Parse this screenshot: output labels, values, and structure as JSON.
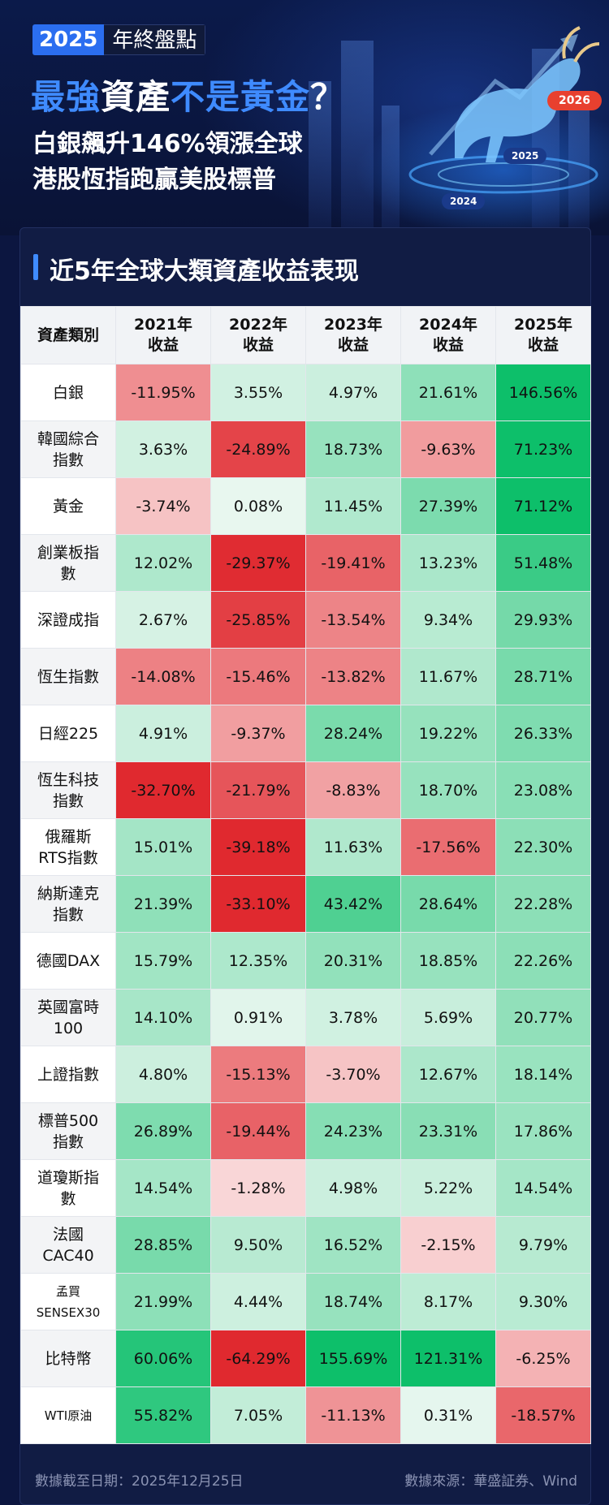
{
  "header": {
    "badge_year": "2025",
    "badge_label": "年終盤點",
    "title_blue_1": "最強",
    "title_white_1": "資產",
    "title_blue_2": "不是黃金",
    "title_white_2": "？",
    "subtitle_1": "白銀飆升146%領漲全球",
    "subtitle_2": "港股恆指跑贏美股標普",
    "year_tags": [
      "2024",
      "2025",
      "2026"
    ]
  },
  "section_title": "近5年全球大類資產收益表现",
  "footer": {
    "date_note": "數據截至日期：2025年12月25日",
    "source_note": "數據來源：華盛証券、Wind"
  },
  "colors": {
    "positive_scale": [
      "#e9f7f0",
      "#0dbf6a"
    ],
    "negative_scale": [
      "#fbe3e3",
      "#e0292f"
    ],
    "accent": "#3f8bff"
  },
  "chart_data": {
    "type": "table",
    "title": "近5年全球大類資產收益表现",
    "columns": [
      "資產類別",
      "2021年\n收益",
      "2022年\n收益",
      "2023年\n收益",
      "2024年\n收益",
      "2025年\n收益"
    ],
    "rows": [
      {
        "asset": "白銀",
        "values": [
          "-11.95%",
          "3.55%",
          "4.97%",
          "21.61%",
          "146.56%"
        ]
      },
      {
        "asset": "韓國綜合\n指數",
        "values": [
          "3.63%",
          "-24.89%",
          "18.73%",
          "-9.63%",
          "71.23%"
        ]
      },
      {
        "asset": "黃金",
        "values": [
          "-3.74%",
          "0.08%",
          "11.45%",
          "27.39%",
          "71.12%"
        ]
      },
      {
        "asset": "創業板指\n數",
        "values": [
          "12.02%",
          "-29.37%",
          "-19.41%",
          "13.23%",
          "51.48%"
        ]
      },
      {
        "asset": "深證成指",
        "values": [
          "2.67%",
          "-25.85%",
          "-13.54%",
          "9.34%",
          "29.93%"
        ]
      },
      {
        "asset": "恆生指數",
        "values": [
          "-14.08%",
          "-15.46%",
          "-13.82%",
          "11.67%",
          "28.71%"
        ]
      },
      {
        "asset": "日經225",
        "values": [
          "4.91%",
          "-9.37%",
          "28.24%",
          "19.22%",
          "26.33%"
        ]
      },
      {
        "asset": "恆生科技\n指數",
        "values": [
          "-32.70%",
          "-21.79%",
          "-8.83%",
          "18.70%",
          "23.08%"
        ]
      },
      {
        "asset": "俄羅斯\nRTS指數",
        "values": [
          "15.01%",
          "-39.18%",
          "11.63%",
          "-17.56%",
          "22.30%"
        ]
      },
      {
        "asset": "納斯達克\n指數",
        "values": [
          "21.39%",
          "-33.10%",
          "43.42%",
          "28.64%",
          "22.28%"
        ]
      },
      {
        "asset": "德國DAX",
        "values": [
          "15.79%",
          "12.35%",
          "20.31%",
          "18.85%",
          "22.26%"
        ]
      },
      {
        "asset": "英國富時\n100",
        "values": [
          "14.10%",
          "0.91%",
          "3.78%",
          "5.69%",
          "20.77%"
        ]
      },
      {
        "asset": "上證指數",
        "values": [
          "4.80%",
          "-15.13%",
          "-3.70%",
          "12.67%",
          "18.14%"
        ]
      },
      {
        "asset": "標普500\n指數",
        "values": [
          "26.89%",
          "-19.44%",
          "24.23%",
          "23.31%",
          "17.86%"
        ]
      },
      {
        "asset": "道瓊斯指\n數",
        "values": [
          "14.54%",
          "-1.28%",
          "4.98%",
          "5.22%",
          "14.54%"
        ]
      },
      {
        "asset": "法國\nCAC40",
        "values": [
          "28.85%",
          "9.50%",
          "16.52%",
          "-2.15%",
          "9.79%"
        ]
      },
      {
        "asset": "孟買\nSENSEX30",
        "values": [
          "21.99%",
          "4.44%",
          "18.74%",
          "8.17%",
          "9.30%"
        ]
      },
      {
        "asset": "比特幣",
        "values": [
          "60.06%",
          "-64.29%",
          "155.69%",
          "121.31%",
          "-6.25%"
        ]
      },
      {
        "asset": "WTI原油",
        "values": [
          "55.82%",
          "7.05%",
          "-11.13%",
          "0.31%",
          "-18.57%"
        ]
      }
    ]
  }
}
